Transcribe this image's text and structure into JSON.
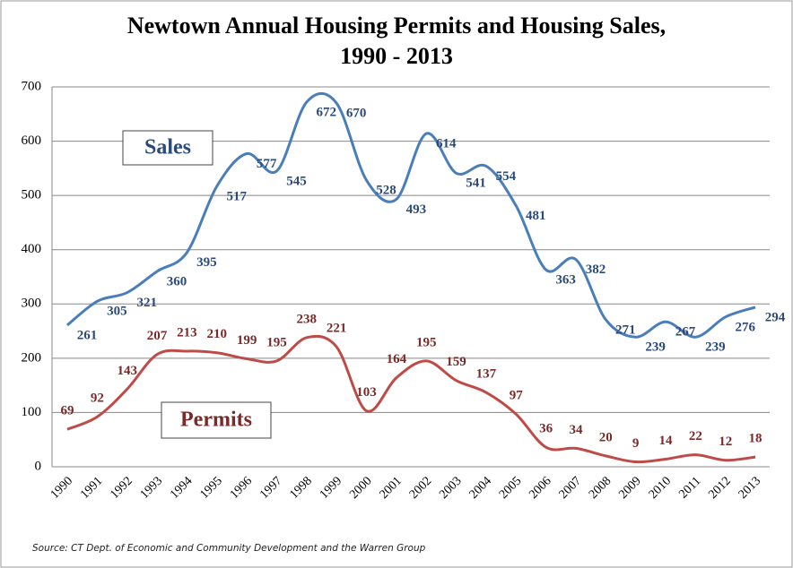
{
  "chart_data": {
    "type": "line",
    "title": "Newtown Annual Housing Permits and Housing Sales,\n1990 - 2013",
    "source": "Source: CT Dept. of Economic and Community Development and the Warren Group",
    "categories": [
      "1990",
      "1991",
      "1992",
      "1993",
      "1994",
      "1995",
      "1996",
      "1997",
      "1998",
      "1999",
      "2000",
      "2001",
      "2002",
      "2003",
      "2004",
      "2005",
      "2006",
      "2007",
      "2008",
      "2009",
      "2010",
      "2011",
      "2012",
      "2013"
    ],
    "series": [
      {
        "name": "Sales",
        "color": "#4a7ebb",
        "label_color": "#2b4a7a",
        "values": [
          261,
          305,
          321,
          360,
          395,
          517,
          577,
          545,
          672,
          670,
          528,
          493,
          614,
          541,
          554,
          481,
          363,
          382,
          271,
          239,
          267,
          239,
          276,
          294
        ]
      },
      {
        "name": "Permits",
        "color": "#be4b48",
        "label_color": "#7a2a28",
        "values": [
          69,
          92,
          143,
          207,
          213,
          210,
          199,
          195,
          238,
          221,
          103,
          164,
          195,
          159,
          137,
          97,
          36,
          34,
          20,
          9,
          14,
          22,
          12,
          18
        ]
      }
    ],
    "ylim": [
      0,
      700
    ],
    "yticks": [
      0,
      100,
      200,
      300,
      400,
      500,
      600,
      700
    ],
    "grid": true
  }
}
